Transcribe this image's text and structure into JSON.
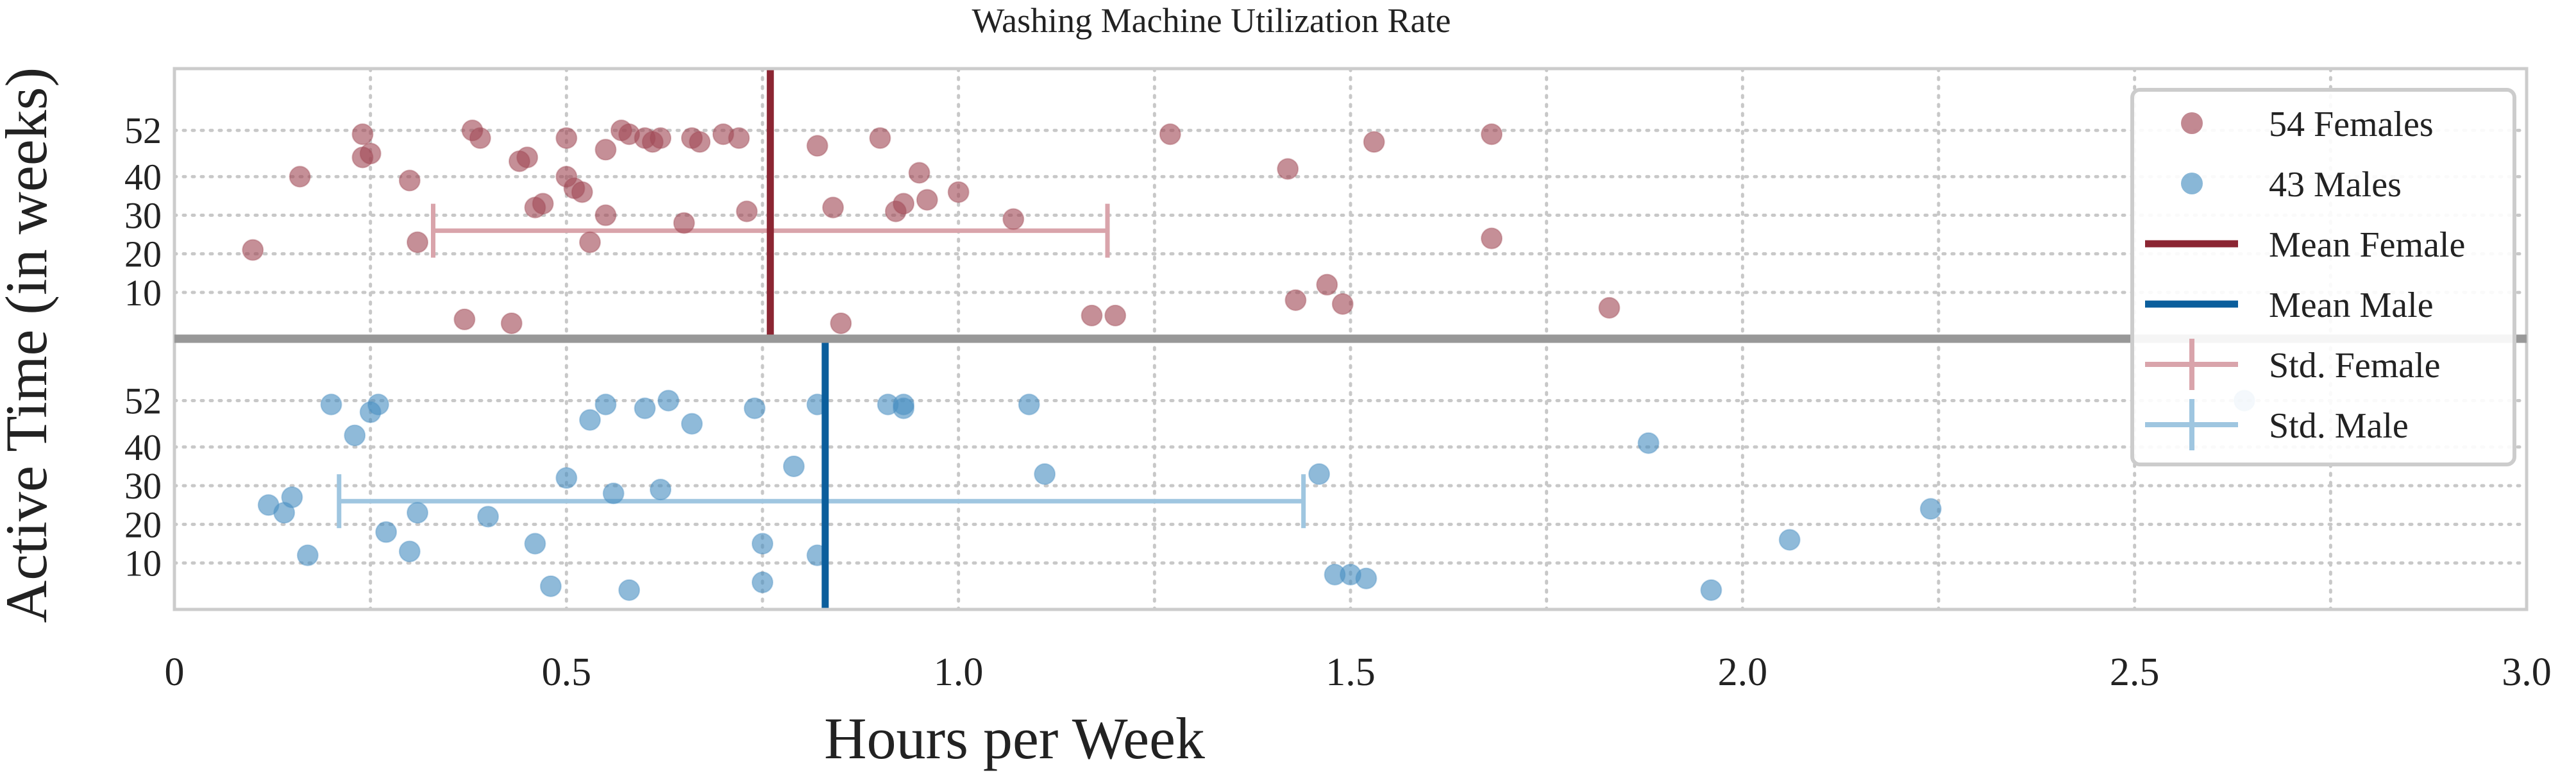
{
  "chart_data": {
    "type": "scatter",
    "title": "Washing Machine Utilization Rate",
    "xlabel": "Hours per Week",
    "ylabel": "Active Time (in weeks)",
    "xlim": [
      0,
      3.0
    ],
    "x_ticks": [
      0,
      0.5,
      1.0,
      1.5,
      2.0,
      2.5,
      3.0
    ],
    "x_tick_labels": [
      "0",
      "0.5",
      "1.0",
      "1.5",
      "2.0",
      "2.5",
      "3.0"
    ],
    "y_ticks": [
      10,
      20,
      30,
      40,
      52
    ],
    "y_tick_labels": [
      "10",
      "20",
      "30",
      "40",
      "52"
    ],
    "grid": true,
    "legend_position": "top-right",
    "panels": [
      {
        "id": "female",
        "position": "top",
        "ylim": [
          -2,
          68
        ],
        "series_key": "females",
        "mean_key": "mean_female",
        "std_key": "std_female"
      },
      {
        "id": "male",
        "position": "bottom",
        "ylim": [
          -2,
          68
        ],
        "series_key": "males",
        "mean_key": "mean_male",
        "std_key": "std_male"
      }
    ],
    "series": [
      {
        "key": "females",
        "name": "54 Females",
        "color": "#a14a57",
        "points": [
          [
            0.1,
            21
          ],
          [
            0.16,
            40
          ],
          [
            0.24,
            45
          ],
          [
            0.24,
            51
          ],
          [
            0.25,
            46
          ],
          [
            0.3,
            39
          ],
          [
            0.31,
            23
          ],
          [
            0.37,
            3
          ],
          [
            0.39,
            50
          ],
          [
            0.43,
            2
          ],
          [
            0.44,
            44
          ],
          [
            0.45,
            45
          ],
          [
            0.46,
            32
          ],
          [
            0.47,
            33
          ],
          [
            0.5,
            40
          ],
          [
            0.5,
            50
          ],
          [
            0.51,
            37
          ],
          [
            0.52,
            36
          ],
          [
            0.53,
            23
          ],
          [
            0.55,
            30
          ],
          [
            0.55,
            47
          ],
          [
            0.57,
            52
          ],
          [
            0.58,
            51
          ],
          [
            0.6,
            50
          ],
          [
            0.61,
            49
          ],
          [
            0.62,
            50
          ],
          [
            0.65,
            28
          ],
          [
            0.66,
            50
          ],
          [
            0.67,
            49
          ],
          [
            0.7,
            51
          ],
          [
            0.72,
            50
          ],
          [
            0.73,
            31
          ],
          [
            0.82,
            48
          ],
          [
            0.84,
            32
          ],
          [
            0.85,
            2
          ],
          [
            0.9,
            50
          ],
          [
            0.92,
            31
          ],
          [
            0.93,
            33
          ],
          [
            0.95,
            41
          ],
          [
            0.96,
            34
          ],
          [
            1.0,
            36
          ],
          [
            1.07,
            29
          ],
          [
            1.17,
            4
          ],
          [
            1.2,
            4
          ],
          [
            1.27,
            51
          ],
          [
            1.42,
            42
          ],
          [
            1.43,
            8
          ],
          [
            1.47,
            12
          ],
          [
            1.49,
            7
          ],
          [
            1.53,
            49
          ],
          [
            1.68,
            51
          ],
          [
            1.68,
            24
          ],
          [
            1.83,
            6
          ],
          [
            0.38,
            52
          ]
        ]
      },
      {
        "key": "males",
        "name": "43 Males",
        "color": "#4a90c2",
        "points": [
          [
            0.12,
            25
          ],
          [
            0.14,
            23
          ],
          [
            0.15,
            27
          ],
          [
            0.17,
            12
          ],
          [
            0.2,
            51
          ],
          [
            0.23,
            43
          ],
          [
            0.25,
            49
          ],
          [
            0.26,
            51
          ],
          [
            0.27,
            18
          ],
          [
            0.3,
            13
          ],
          [
            0.31,
            23
          ],
          [
            0.4,
            22
          ],
          [
            0.46,
            15
          ],
          [
            0.48,
            4
          ],
          [
            0.5,
            32
          ],
          [
            0.53,
            47
          ],
          [
            0.55,
            51
          ],
          [
            0.56,
            28
          ],
          [
            0.58,
            3
          ],
          [
            0.6,
            50
          ],
          [
            0.62,
            29
          ],
          [
            0.63,
            52
          ],
          [
            0.66,
            46
          ],
          [
            0.74,
            50
          ],
          [
            0.75,
            15
          ],
          [
            0.75,
            5
          ],
          [
            0.79,
            35
          ],
          [
            0.82,
            51
          ],
          [
            0.91,
            51
          ],
          [
            0.93,
            51
          ],
          [
            0.93,
            50
          ],
          [
            1.09,
            51
          ],
          [
            1.11,
            33
          ],
          [
            1.46,
            33
          ],
          [
            1.48,
            7
          ],
          [
            1.5,
            7
          ],
          [
            1.52,
            6
          ],
          [
            1.88,
            41
          ],
          [
            1.96,
            3
          ],
          [
            2.06,
            16
          ],
          [
            2.24,
            24
          ],
          [
            2.64,
            52
          ],
          [
            0.82,
            12
          ]
        ]
      }
    ],
    "mean_female": {
      "name": "Mean Female",
      "value": 0.76,
      "color": "#8b2532"
    },
    "mean_male": {
      "name": "Mean Male",
      "value": 0.83,
      "color": "#0b5e9c"
    },
    "std_female": {
      "name": "Std. Female",
      "low": 0.33,
      "high": 1.19,
      "y": 26,
      "color": "#d9a4ab"
    },
    "std_male": {
      "name": "Std. Male",
      "low": 0.21,
      "high": 1.44,
      "y": 26,
      "color": "#9fc6e0"
    },
    "legend_order": [
      "females",
      "males",
      "mean_female",
      "mean_male",
      "std_female",
      "std_male"
    ]
  }
}
